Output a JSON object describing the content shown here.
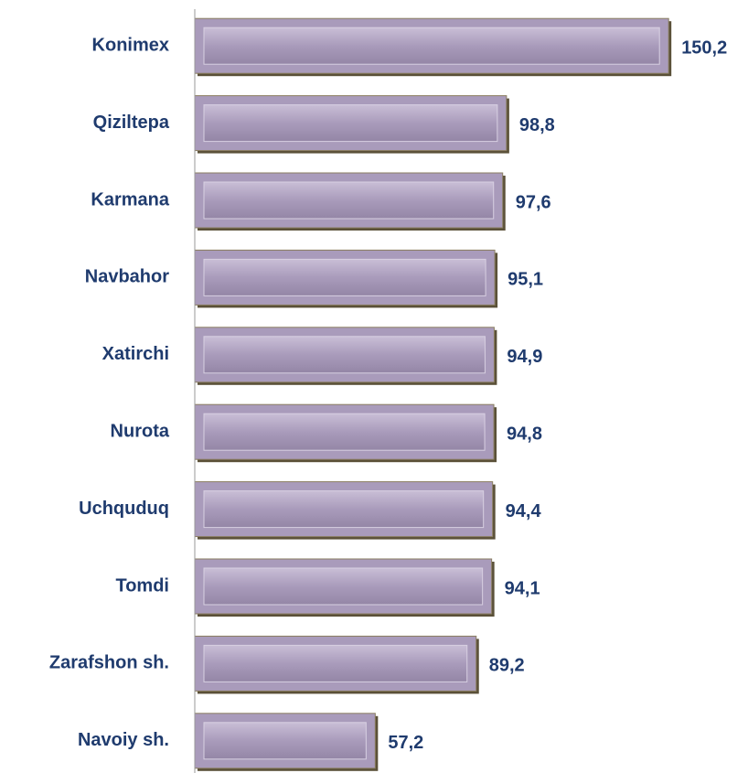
{
  "chart_data": {
    "type": "bar",
    "orientation": "horizontal",
    "categories": [
      "Konimex",
      "Qiziltepa",
      "Karmana",
      "Navbahor",
      "Xatirchi",
      "Nurota",
      "Uchquduq",
      "Tomdi",
      "Zarafshon sh.",
      "Navoiy sh."
    ],
    "values": [
      150.2,
      98.8,
      97.6,
      95.1,
      94.9,
      94.8,
      94.4,
      94.1,
      89.2,
      57.2
    ],
    "value_labels": [
      "150,2",
      "98,8",
      "97,6",
      "95,1",
      "94,9",
      "94,8",
      "94,4",
      "94,1",
      "89,2",
      "57,2"
    ],
    "color": "#a99bbb",
    "xlim": [
      0,
      160
    ]
  }
}
